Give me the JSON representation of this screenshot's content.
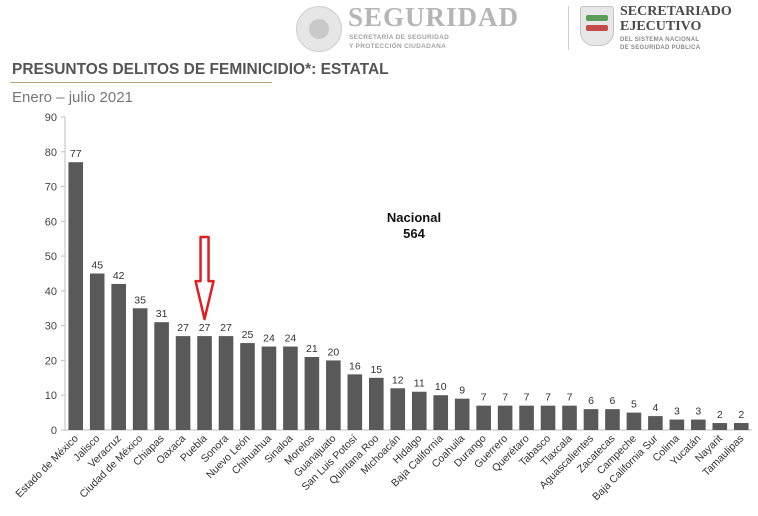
{
  "header": {
    "brand_title": "SEGURIDAD",
    "brand_sub_1": "SECRETARÍA DE SEGURIDAD",
    "brand_sub_2": "Y PROTECCIÓN CIUDADANA",
    "se_title_1": "SECRETARIADO",
    "se_title_2": "EJECUTIVO",
    "se_sub_1": "DEL SISTEMA NACIONAL",
    "se_sub_2": "DE SEGURIDAD PÚBLICA"
  },
  "chart_data": {
    "type": "bar",
    "title": "PRESUNTOS DELITOS DE FEMINICIDIO*: ESTATAL",
    "subtitle": "Enero – julio 2021",
    "annotation": {
      "line1": "Nacional",
      "line2": "564"
    },
    "highlight": {
      "category": "Puebla",
      "marker": "red-down-arrow",
      "color": "#e02020"
    },
    "bar_color": "#595959",
    "categories": [
      "Estado de México",
      "Jalisco",
      "Veracruz",
      "Ciudad de México",
      "Chiapas",
      "Oaxaca",
      "Puebla",
      "Sonora",
      "Nuevo León",
      "Chihuahua",
      "Sinaloa",
      "Morelos",
      "Guanajuato",
      "San Luis Potosí",
      "Quintana Roo",
      "Michoacán",
      "Hidalgo",
      "Baja California",
      "Coahuila",
      "Durango",
      "Guerrero",
      "Querétaro",
      "Tabasco",
      "Tlaxcala",
      "Aguascalientes",
      "Zacatecas",
      "Campeche",
      "Baja California Sur",
      "Colima",
      "Yucatán",
      "Nayarit",
      "Tamaulipas"
    ],
    "values": [
      77,
      45,
      42,
      35,
      31,
      27,
      27,
      27,
      25,
      24,
      24,
      21,
      20,
      16,
      15,
      12,
      11,
      10,
      9,
      7,
      7,
      7,
      7,
      7,
      6,
      6,
      5,
      4,
      3,
      3,
      2,
      2
    ],
    "yticks": [
      0,
      10,
      20,
      30,
      40,
      50,
      60,
      70,
      80,
      90
    ],
    "ylim": [
      0,
      90
    ],
    "grid": false,
    "legend": "none"
  }
}
